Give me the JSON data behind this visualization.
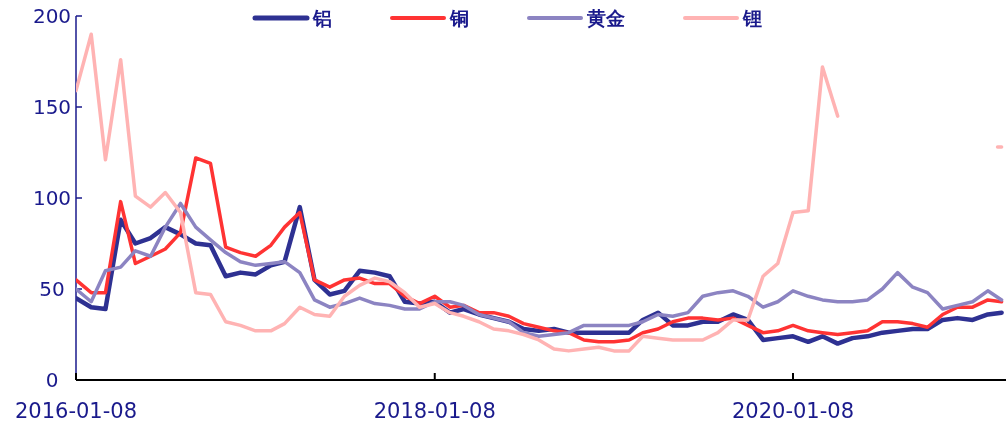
{
  "chart_data": {
    "type": "line",
    "x": [
      "2016-01-08",
      "2016-02-08",
      "2016-03-08",
      "2016-04-08",
      "2016-05-08",
      "2016-06-08",
      "2016-07-08",
      "2016-08-08",
      "2016-09-08",
      "2016-10-08",
      "2016-11-08",
      "2016-12-08",
      "2017-01-08",
      "2017-02-08",
      "2017-03-08",
      "2017-04-08",
      "2017-05-08",
      "2017-06-08",
      "2017-07-08",
      "2017-08-08",
      "2017-09-08",
      "2017-10-08",
      "2017-11-08",
      "2017-12-08",
      "2018-01-08",
      "2018-02-08",
      "2018-03-08",
      "2018-04-08",
      "2018-05-08",
      "2018-06-08",
      "2018-07-08",
      "2018-08-08",
      "2018-09-08",
      "2018-10-08",
      "2018-11-08",
      "2018-12-08",
      "2019-01-08",
      "2019-02-08",
      "2019-03-08",
      "2019-04-08",
      "2019-05-08",
      "2019-06-08",
      "2019-07-08",
      "2019-08-08",
      "2019-09-08",
      "2019-10-08",
      "2019-11-08",
      "2019-12-08",
      "2020-01-08",
      "2020-02-08",
      "2020-03-08",
      "2020-04-08",
      "2020-05-08",
      "2020-06-08",
      "2020-07-08",
      "2020-08-08",
      "2020-09-08",
      "2020-10-08",
      "2020-11-08",
      "2020-12-08",
      "2021-01-08",
      "2021-02-08",
      "2021-03-08"
    ],
    "series": [
      {
        "name": "铝",
        "color": "#2e3192",
        "values": [
          45,
          40,
          39,
          88,
          75,
          78,
          84,
          80,
          75,
          74,
          57,
          59,
          58,
          63,
          65,
          95,
          55,
          47,
          49,
          60,
          59,
          57,
          43,
          42,
          43,
          37,
          39,
          36,
          34,
          32,
          28,
          27,
          28,
          26,
          26,
          26,
          26,
          26,
          33,
          37,
          30,
          30,
          32,
          32,
          36,
          33,
          22,
          23,
          24,
          21,
          24,
          20,
          23,
          24,
          26,
          27,
          28,
          28,
          33,
          34,
          33,
          36,
          37
        ]
      },
      {
        "name": "铜",
        "color": "#ff3333",
        "values": [
          55,
          48,
          48,
          98,
          64,
          68,
          72,
          81,
          122,
          119,
          73,
          70,
          68,
          74,
          84,
          92,
          55,
          51,
          55,
          56,
          53,
          53,
          46,
          42,
          46,
          40,
          41,
          37,
          37,
          35,
          31,
          29,
          27,
          26,
          22,
          21,
          21,
          22,
          26,
          28,
          32,
          34,
          34,
          33,
          34,
          30,
          26,
          27,
          30,
          27,
          26,
          25,
          26,
          27,
          32,
          32,
          31,
          29,
          36,
          40,
          40,
          44,
          43
        ]
      },
      {
        "name": "黄金",
        "color": "#8c84c2",
        "values": [
          50,
          43,
          60,
          62,
          71,
          68,
          84,
          97,
          84,
          77,
          70,
          65,
          63,
          64,
          65,
          59,
          44,
          40,
          42,
          45,
          42,
          41,
          39,
          39,
          43,
          43,
          41,
          36,
          34,
          32,
          26,
          24,
          25,
          26,
          30,
          30,
          30,
          30,
          32,
          36,
          35,
          37,
          46,
          48,
          49,
          46,
          40,
          43,
          49,
          46,
          44,
          43,
          43,
          44,
          50,
          59,
          51,
          48,
          39,
          41,
          43,
          49,
          44
        ]
      },
      {
        "name": "锂",
        "color": "#ffb3b3",
        "values": [
          159,
          190,
          121,
          176,
          101,
          95,
          103,
          92,
          48,
          47,
          32,
          30,
          27,
          27,
          31,
          40,
          36,
          35,
          46,
          52,
          56,
          54,
          48,
          40,
          42,
          37,
          35,
          32,
          28,
          27,
          25,
          22,
          17,
          16,
          17,
          18,
          16,
          16,
          24,
          23,
          22,
          22,
          22,
          26,
          33,
          33,
          57,
          64,
          92,
          93,
          172,
          145,
          null,
          null,
          null,
          null,
          null,
          null,
          null,
          null,
          null,
          null,
          128
        ]
      }
    ],
    "xlim": [
      "2016-01-08",
      "2021-03-17"
    ],
    "xticks": [
      "2016-01-08",
      "2018-01-08",
      "2020-01-08"
    ],
    "ylim": [
      0,
      200
    ],
    "yticks": [
      0,
      50,
      100,
      150,
      200
    ],
    "legend": "top"
  }
}
